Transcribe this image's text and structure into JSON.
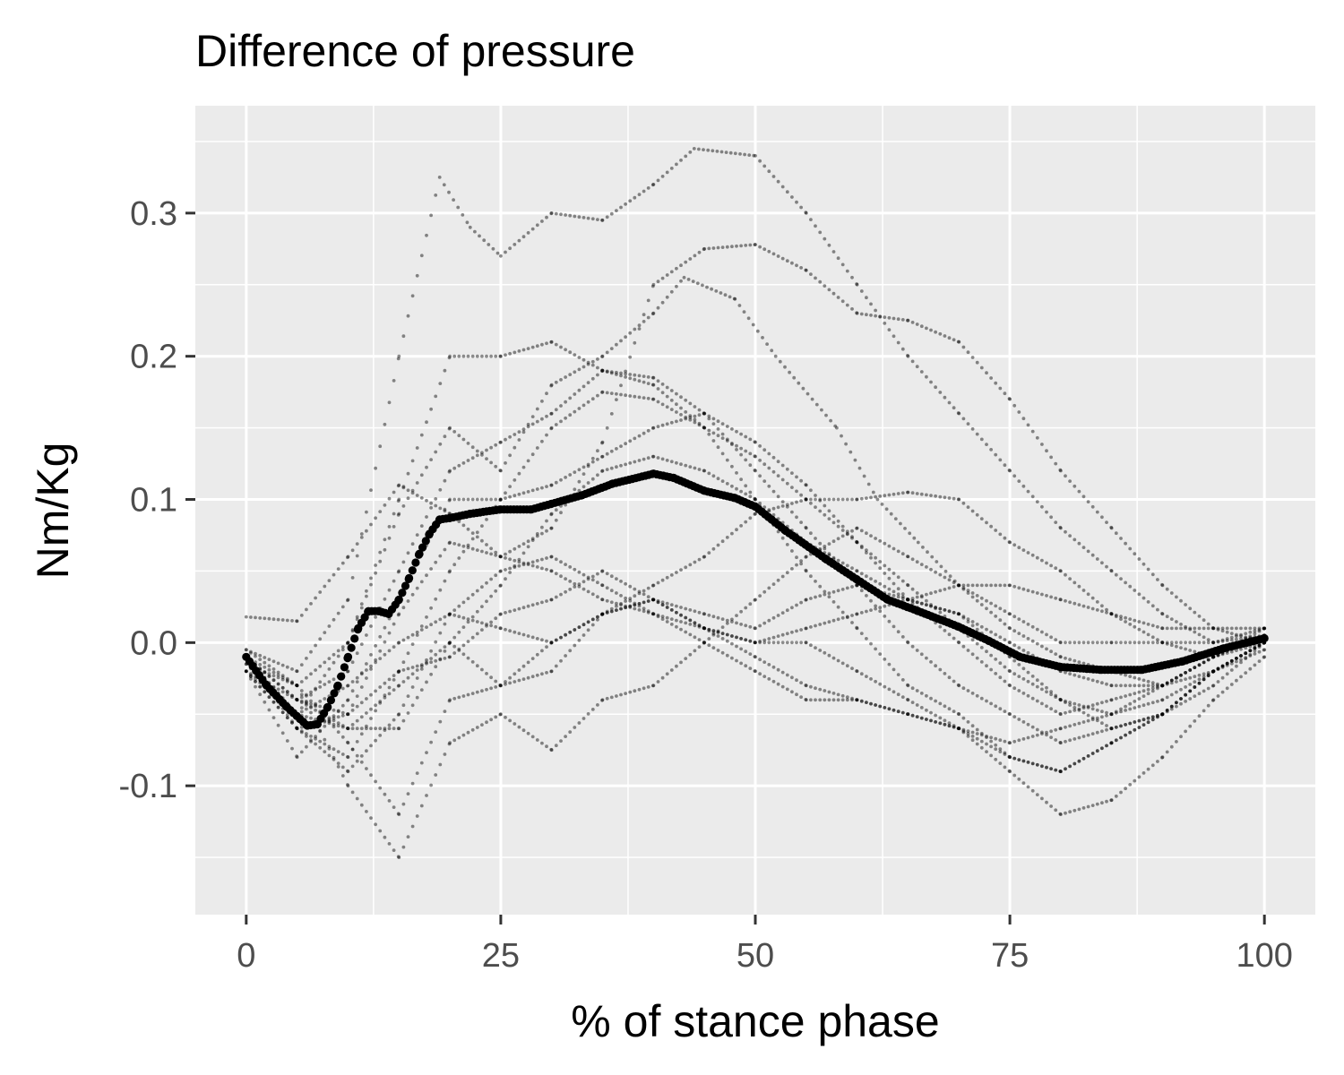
{
  "chart_data": {
    "type": "scatter",
    "title": "Difference of pressure",
    "xlabel": "% of stance phase",
    "ylabel": "Nm/Kg",
    "xlim": [
      -5,
      105
    ],
    "ylim": [
      -0.19,
      0.375
    ],
    "xticks": [
      0,
      25,
      50,
      75,
      100
    ],
    "xtick_labels": [
      "0",
      "25",
      "50",
      "75",
      "100"
    ],
    "yticks": [
      -0.1,
      0.0,
      0.1,
      0.2,
      0.3
    ],
    "ytick_labels": [
      "-0.1",
      "0.0",
      "0.1",
      "0.2",
      "0.3"
    ],
    "grid": true,
    "background": "#ebebeb",
    "point_color": "#000000",
    "series": [
      {
        "role": "mean",
        "x": [
          0,
          2,
          4,
          6,
          7,
          8,
          9,
          10,
          11,
          12,
          13,
          14,
          15,
          16,
          17,
          18,
          19,
          20,
          22,
          25,
          28,
          30,
          33,
          36,
          40,
          42,
          45,
          48,
          50,
          53,
          57,
          60,
          63,
          66,
          70,
          73,
          76,
          80,
          84,
          88,
          92,
          96,
          100
        ],
        "y": [
          -0.01,
          -0.03,
          -0.045,
          -0.058,
          -0.057,
          -0.045,
          -0.03,
          -0.01,
          0.01,
          0.022,
          0.022,
          0.02,
          0.03,
          0.045,
          0.062,
          0.076,
          0.086,
          0.087,
          0.09,
          0.093,
          0.093,
          0.097,
          0.103,
          0.111,
          0.118,
          0.115,
          0.106,
          0.101,
          0.095,
          0.078,
          0.058,
          0.044,
          0.03,
          0.022,
          0.011,
          0.001,
          -0.01,
          -0.017,
          -0.019,
          -0.019,
          -0.013,
          -0.004,
          0.003
        ]
      },
      {
        "role": "trial",
        "x": [
          0,
          5,
          10,
          15,
          20,
          25,
          30,
          35,
          40,
          45,
          50,
          55,
          60,
          65,
          70,
          75,
          80,
          85,
          90,
          95,
          100
        ],
        "y": [
          0.018,
          0.015,
          0.06,
          0.11,
          0.09,
          0.06,
          0.08,
          0.14,
          0.25,
          0.275,
          0.278,
          0.26,
          0.23,
          0.225,
          0.21,
          0.17,
          0.12,
          0.08,
          0.04,
          0.01,
          0.0
        ]
      },
      {
        "role": "trial",
        "x": [
          0,
          5,
          10,
          15,
          19,
          22,
          25,
          30,
          35,
          40,
          44,
          50,
          55,
          60,
          65,
          70,
          75,
          80,
          85,
          90,
          95,
          100
        ],
        "y": [
          -0.005,
          -0.02,
          0.03,
          0.2,
          0.325,
          0.29,
          0.27,
          0.3,
          0.295,
          0.32,
          0.345,
          0.34,
          0.3,
          0.25,
          0.2,
          0.16,
          0.12,
          0.08,
          0.05,
          0.02,
          0.0,
          0.005
        ]
      },
      {
        "role": "trial",
        "x": [
          0,
          5,
          10,
          15,
          20,
          25,
          30,
          35,
          40,
          43,
          48,
          52,
          58,
          62,
          66,
          70,
          75,
          80,
          85,
          90,
          95,
          100
        ],
        "y": [
          -0.01,
          -0.03,
          0.0,
          0.09,
          0.15,
          0.12,
          0.18,
          0.2,
          0.23,
          0.255,
          0.24,
          0.2,
          0.15,
          0.1,
          0.07,
          0.04,
          0.01,
          -0.01,
          -0.02,
          -0.03,
          -0.01,
          0.005
        ]
      },
      {
        "role": "trial",
        "x": [
          0,
          5,
          10,
          15,
          20,
          25,
          30,
          35,
          40,
          45,
          50,
          55,
          60,
          65,
          70,
          75,
          80,
          85,
          90,
          95,
          100
        ],
        "y": [
          -0.02,
          -0.04,
          -0.02,
          0.05,
          0.12,
          0.14,
          0.16,
          0.19,
          0.185,
          0.16,
          0.12,
          0.08,
          0.04,
          0.0,
          -0.03,
          -0.05,
          -0.07,
          -0.06,
          -0.05,
          -0.02,
          0.0
        ]
      },
      {
        "role": "trial",
        "x": [
          0,
          5,
          10,
          15,
          20,
          25,
          30,
          35,
          40,
          45,
          50,
          55,
          60,
          65,
          70,
          75,
          80,
          85,
          90,
          95,
          100
        ],
        "y": [
          -0.015,
          -0.05,
          0.0,
          0.1,
          0.2,
          0.2,
          0.21,
          0.19,
          0.18,
          0.15,
          0.1,
          0.05,
          0.01,
          -0.03,
          -0.05,
          -0.08,
          -0.09,
          -0.07,
          -0.05,
          -0.02,
          0.0
        ]
      },
      {
        "role": "trial",
        "x": [
          0,
          5,
          10,
          15,
          20,
          25,
          30,
          35,
          40,
          45,
          50,
          55,
          60,
          65,
          70,
          75,
          80,
          85,
          90,
          95,
          100
        ],
        "y": [
          -0.02,
          -0.06,
          -0.08,
          -0.02,
          0.05,
          0.1,
          0.15,
          0.175,
          0.17,
          0.15,
          0.13,
          0.1,
          0.07,
          0.04,
          0.01,
          -0.02,
          -0.04,
          -0.06,
          -0.05,
          -0.03,
          0.0
        ]
      },
      {
        "role": "trial",
        "x": [
          0,
          5,
          10,
          15,
          20,
          25,
          30,
          35,
          40,
          45,
          50,
          55,
          60,
          65,
          70,
          75,
          80,
          85,
          90,
          95,
          100
        ],
        "y": [
          -0.01,
          -0.04,
          -0.06,
          -0.03,
          0.0,
          -0.03,
          -0.02,
          0.02,
          0.04,
          0.06,
          0.09,
          0.1,
          0.1,
          0.105,
          0.1,
          0.07,
          0.05,
          0.02,
          0.0,
          -0.01,
          0.005
        ]
      },
      {
        "role": "trial",
        "x": [
          0,
          5,
          10,
          15,
          20,
          25,
          30,
          35,
          40,
          45,
          50,
          55,
          60,
          65,
          70,
          75,
          80,
          85,
          90,
          95,
          100
        ],
        "y": [
          -0.005,
          -0.03,
          -0.1,
          -0.15,
          -0.07,
          -0.05,
          -0.075,
          -0.04,
          -0.03,
          0.0,
          0.03,
          0.06,
          0.08,
          0.06,
          0.04,
          0.02,
          0.0,
          0.0,
          0.0,
          0.0,
          0.01
        ]
      },
      {
        "role": "trial",
        "x": [
          0,
          5,
          10,
          15,
          20,
          25,
          30,
          35,
          40,
          45,
          50,
          55,
          60,
          65,
          70,
          75,
          80,
          85,
          90,
          95,
          100
        ],
        "y": [
          -0.01,
          -0.06,
          -0.09,
          -0.05,
          0.02,
          0.05,
          0.06,
          0.04,
          0.02,
          0.0,
          -0.02,
          -0.04,
          -0.04,
          -0.05,
          -0.06,
          -0.09,
          -0.12,
          -0.11,
          -0.08,
          -0.04,
          -0.01
        ]
      },
      {
        "role": "trial",
        "x": [
          0,
          5,
          10,
          15,
          20,
          25,
          30,
          35,
          40,
          45,
          50,
          55,
          60,
          65,
          70,
          75,
          80,
          85,
          90,
          95,
          100
        ],
        "y": [
          -0.02,
          -0.05,
          -0.03,
          0.0,
          0.02,
          0.01,
          0.0,
          0.02,
          0.03,
          0.02,
          0.01,
          0.03,
          0.04,
          0.03,
          0.02,
          -0.01,
          -0.04,
          -0.05,
          -0.03,
          -0.01,
          0.01
        ]
      },
      {
        "role": "trial",
        "x": [
          0,
          5,
          10,
          15,
          20,
          25,
          30,
          35,
          40,
          45,
          50,
          55,
          60,
          65,
          70,
          75,
          80,
          85,
          90,
          95,
          100
        ],
        "y": [
          -0.01,
          -0.04,
          -0.05,
          -0.02,
          -0.01,
          0.02,
          0.03,
          0.05,
          0.03,
          0.01,
          0.0,
          0.0,
          -0.02,
          -0.04,
          -0.06,
          -0.07,
          -0.06,
          -0.05,
          -0.04,
          -0.02,
          0.0
        ]
      },
      {
        "role": "trial",
        "x": [
          0,
          5,
          10,
          15,
          20,
          25,
          30,
          35,
          40,
          45,
          50,
          55,
          60,
          65,
          70,
          75,
          80,
          85,
          90,
          95,
          100
        ],
        "y": [
          -0.02,
          -0.06,
          -0.05,
          0.02,
          0.07,
          0.06,
          0.05,
          0.03,
          0.02,
          0.01,
          0.0,
          0.01,
          0.02,
          0.03,
          0.04,
          0.04,
          0.03,
          0.02,
          0.01,
          0.01,
          0.01
        ]
      },
      {
        "role": "trial",
        "x": [
          0,
          5,
          10,
          15,
          20,
          25,
          30,
          35,
          40,
          45,
          50,
          55,
          60,
          65,
          70,
          75,
          80,
          85,
          90,
          95,
          100
        ],
        "y": [
          -0.015,
          -0.03,
          -0.07,
          -0.12,
          -0.04,
          -0.03,
          0.0,
          0.02,
          0.03,
          0.01,
          -0.01,
          -0.03,
          -0.04,
          -0.05,
          -0.06,
          -0.08,
          -0.09,
          -0.07,
          -0.05,
          -0.02,
          0.0
        ]
      },
      {
        "role": "trial",
        "x": [
          0,
          5,
          10,
          15,
          20,
          25,
          30,
          35,
          40,
          45,
          50,
          55,
          60,
          65,
          70,
          75,
          80,
          85,
          90,
          95,
          100
        ],
        "y": [
          -0.01,
          -0.05,
          -0.06,
          -0.06,
          0.0,
          0.04,
          0.09,
          0.12,
          0.13,
          0.12,
          0.1,
          0.07,
          0.05,
          0.03,
          0.02,
          0.0,
          -0.02,
          -0.03,
          -0.03,
          -0.01,
          0.0
        ]
      },
      {
        "role": "trial",
        "x": [
          0,
          5,
          10,
          15,
          20,
          25,
          30,
          35,
          40,
          45,
          50,
          55,
          60,
          65,
          70,
          75,
          80,
          85,
          90,
          95,
          100
        ],
        "y": [
          -0.02,
          -0.08,
          -0.04,
          0.03,
          0.1,
          0.1,
          0.11,
          0.13,
          0.15,
          0.16,
          0.14,
          0.11,
          0.07,
          0.03,
          0.0,
          -0.03,
          -0.05,
          -0.04,
          -0.03,
          -0.02,
          -0.005
        ]
      }
    ]
  }
}
